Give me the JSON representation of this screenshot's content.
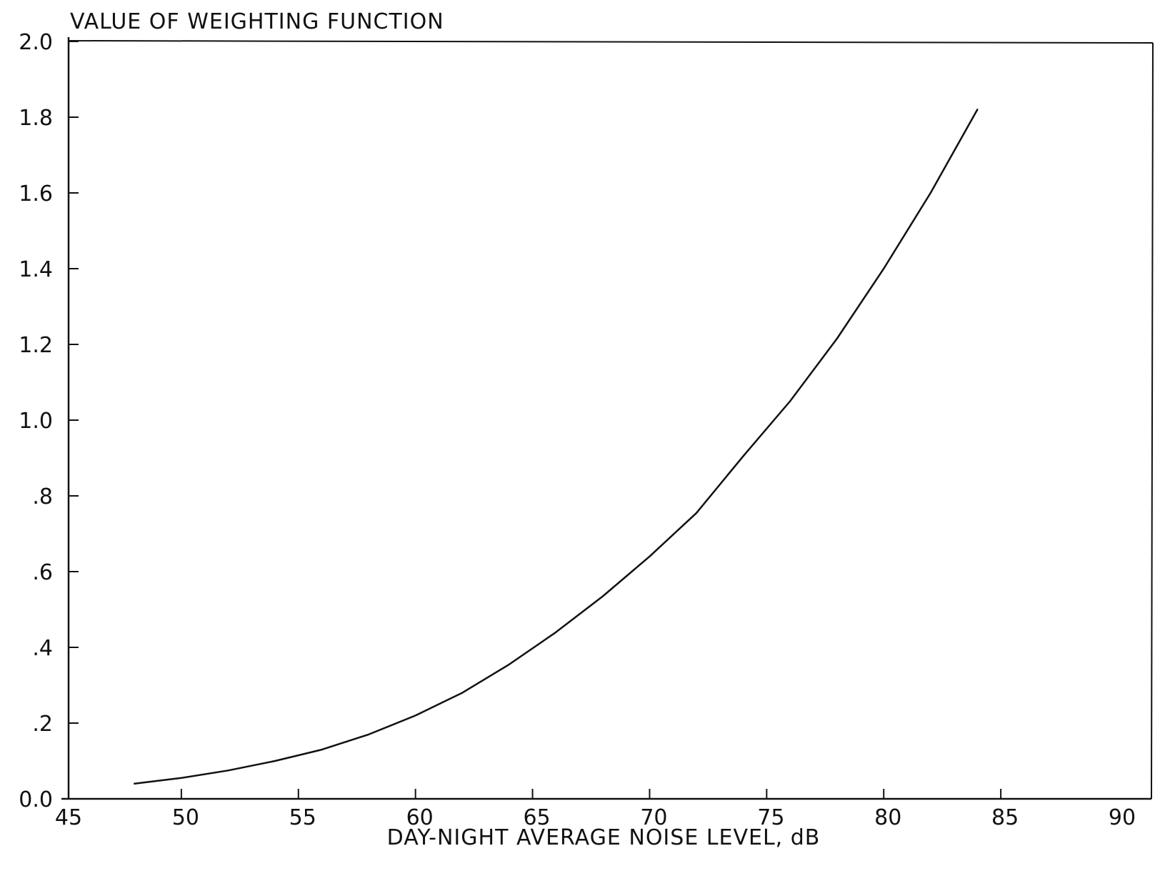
{
  "chart_data": {
    "type": "line",
    "ylabel": "VALUE OF WEIGHTING FUNCTION",
    "xlabel": "DAY-NIGHT AVERAGE NOISE LEVEL, dB",
    "xlim": [
      45,
      90
    ],
    "ylim": [
      0.0,
      2.0
    ],
    "grid": false,
    "x_ticks": [
      45,
      50,
      55,
      60,
      65,
      70,
      75,
      80,
      85,
      90
    ],
    "x_tick_labels": [
      "45",
      "50",
      "55",
      "60",
      "65",
      "70",
      "75",
      "80",
      "85",
      "90"
    ],
    "y_ticks": [
      0.0,
      0.2,
      0.4,
      0.6,
      0.8,
      1.0,
      1.2,
      1.4,
      1.6,
      1.8,
      2.0
    ],
    "y_tick_labels": [
      "0.0",
      ".2",
      ".4",
      ".6",
      ".8",
      "1.0",
      "1.2",
      "1.4",
      "1.6",
      "1.8",
      "2.0"
    ],
    "series": [
      {
        "x": [
          48,
          50,
          52,
          54,
          56,
          58,
          60,
          62,
          64,
          66,
          68,
          70,
          72,
          74,
          76,
          78,
          80,
          82,
          84
        ],
        "y": [
          0.04,
          0.055,
          0.075,
          0.1,
          0.13,
          0.17,
          0.22,
          0.28,
          0.355,
          0.44,
          0.535,
          0.64,
          0.755,
          0.905,
          1.05,
          1.215,
          1.4,
          1.6,
          1.82
        ]
      }
    ],
    "colors": {
      "line": "#111111",
      "axes": "#111111",
      "background": "#ffffff"
    }
  }
}
